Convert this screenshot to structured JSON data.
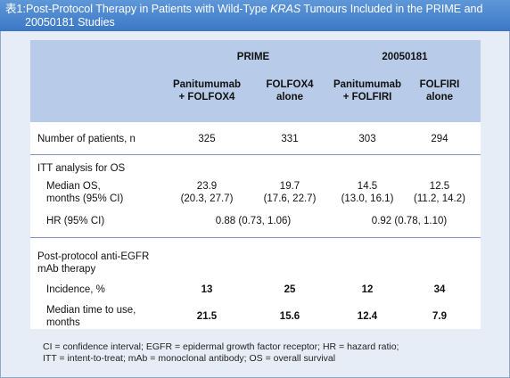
{
  "title": {
    "prefix": "表1:",
    "line1_before": "Post-Protocol Therapy in Patients with Wild-Type ",
    "line1_italic": "KRAS",
    "line1_after": " Tumours Included in the PRIME and",
    "line2": "20050181 Studies"
  },
  "header": {
    "group_prime": "PRIME",
    "group_20050181": "20050181",
    "columns": [
      {
        "line1": "Panitumumab",
        "line2": "+ FOLFOX4"
      },
      {
        "line1": "FOLFOX4",
        "line2": "alone"
      },
      {
        "line1": "Panitumumab",
        "line2": "+ FOLFIRI"
      },
      {
        "line1": "FOLFIRI",
        "line2": "alone"
      }
    ]
  },
  "rows": {
    "patients": {
      "label": "Number of patients, n",
      "values": [
        "325",
        "331",
        "303",
        "294"
      ]
    },
    "itt": {
      "label": "ITT analysis for OS"
    },
    "median_os": {
      "label1": "Median OS,",
      "label2": "months (95% CI)",
      "values": [
        {
          "v": "23.9",
          "ci": "(20.3, 27.7)"
        },
        {
          "v": "19.7",
          "ci": "(17.6, 22.7)"
        },
        {
          "v": "14.5",
          "ci": "(13.0, 16.1)"
        },
        {
          "v": "12.5",
          "ci": "(11.2, 14.2)"
        }
      ]
    },
    "hr": {
      "label": "HR (95% CI)",
      "prime": "0.88 (0.73, 1.06)",
      "s20050181": "0.92 (0.78, 1.10)"
    },
    "post_protocol": {
      "label1": "Post-protocol anti-EGFR",
      "label2": "mAb therapy"
    },
    "incidence": {
      "label": "Incidence, %",
      "values": [
        "13",
        "25",
        "12",
        "34"
      ]
    },
    "median_time": {
      "label1": "Median time to use,",
      "label2": "months",
      "values": [
        "21.5",
        "15.6",
        "12.4",
        "7.9"
      ]
    }
  },
  "footnote": {
    "line1": "CI = confidence interval; EGFR = epidermal growth factor receptor; HR = hazard ratio;",
    "line2": "ITT = intent-to-treat; mAb = monoclonal antibody; OS = overall survival"
  }
}
